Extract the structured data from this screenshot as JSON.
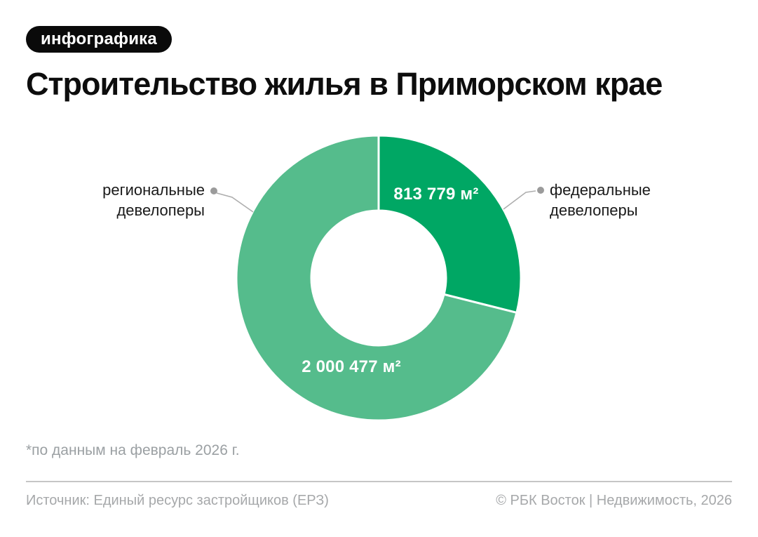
{
  "badge": {
    "label": "инфографика"
  },
  "title": "Строительство жилья в Приморском крае",
  "chart_data": {
    "type": "pie",
    "donut": true,
    "title": "Строительство жилья в Приморском крае",
    "units": "м²",
    "start_angle_deg": 0,
    "direction": "clockwise",
    "total": 2814256,
    "segments": [
      {
        "label": "федеральные девелоперы",
        "value": 813779,
        "value_label": "813 779 м²",
        "color": "#00a764"
      },
      {
        "label": "региональные девелоперы",
        "value": 2000477,
        "value_label": "2 000 477 м²",
        "color": "#55bc8c"
      }
    ],
    "note": "*по данным на февраль 2026 г.",
    "legend_position": "callouts"
  },
  "callouts": {
    "regional": {
      "line1": "региональные",
      "line2": "девелоперы"
    },
    "federal": {
      "line1": "федеральные",
      "line2": "девелоперы"
    }
  },
  "footnote": "*по данным на февраль 2026 г.",
  "footer": {
    "source": "Источник: Единый ресурс застройщиков (ЕРЗ)",
    "copyright": "© РБК Восток | Недвижимость, 2026"
  },
  "colors": {
    "federal_green": "#00a764",
    "regional_green": "#55bc8c",
    "badge_bg": "#0a0a0a",
    "text_dark": "#0d0d0d",
    "text_muted": "#9ba0a3",
    "leader_gray": "#adadad"
  }
}
